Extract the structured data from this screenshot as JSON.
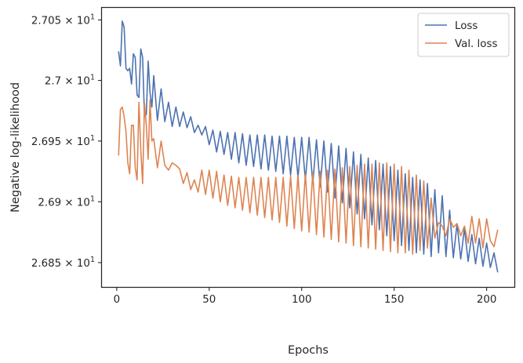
{
  "chart_data": {
    "type": "line",
    "xlabel": "Epochs",
    "ylabel": "Negative log-likelihood",
    "xlim": [
      -8,
      215
    ],
    "ylim": [
      26.83,
      27.06
    ],
    "y_scale": "log",
    "x_ticks": [
      0,
      50,
      100,
      150,
      200
    ],
    "x_tick_labels": [
      "0",
      "50",
      "100",
      "150",
      "200"
    ],
    "y_ticks": [
      26.85,
      26.9,
      26.95,
      27.0,
      27.05
    ],
    "y_tick_mantissa": [
      "2.685",
      "2.69",
      "2.695",
      "2.7",
      "2.705"
    ],
    "y_tick_base": "10",
    "y_tick_exp": "1",
    "grid": false,
    "legend_position": "top-right",
    "series": [
      {
        "name": "Loss",
        "color": "#4c72b0",
        "x": [
          1,
          2,
          3,
          4,
          5,
          6,
          7,
          8,
          9,
          10,
          11,
          12,
          13,
          14,
          15,
          16,
          17,
          18,
          19,
          20,
          22,
          24,
          26,
          28,
          30,
          32,
          34,
          36,
          38,
          40,
          42,
          44,
          46,
          48,
          50,
          52,
          54,
          56,
          58,
          60,
          62,
          64,
          66,
          68,
          70,
          72,
          74,
          76,
          78,
          80,
          82,
          84,
          86,
          88,
          90,
          92,
          94,
          96,
          98,
          100,
          102,
          104,
          106,
          108,
          110,
          112,
          114,
          116,
          118,
          120,
          122,
          124,
          126,
          128,
          130,
          132,
          134,
          136,
          138,
          140,
          142,
          144,
          146,
          148,
          150,
          152,
          154,
          156,
          158,
          160,
          162,
          164,
          166,
          168,
          170,
          172,
          174,
          176,
          178,
          180,
          182,
          184,
          186,
          188,
          190,
          192,
          194,
          196,
          198,
          200,
          202,
          204,
          206
        ],
        "values": [
          27.024,
          27.012,
          27.049,
          27.044,
          27.01,
          27.008,
          27.01,
          26.997,
          27.022,
          27.019,
          26.988,
          26.986,
          27.026,
          27.019,
          26.97,
          26.972,
          27.016,
          26.99,
          26.978,
          27.004,
          26.967,
          26.993,
          26.966,
          26.982,
          26.962,
          26.978,
          26.962,
          26.974,
          26.961,
          26.97,
          26.957,
          26.963,
          26.955,
          26.962,
          26.947,
          26.959,
          26.941,
          26.958,
          26.939,
          26.957,
          26.935,
          26.957,
          26.932,
          26.956,
          26.93,
          26.955,
          26.929,
          26.955,
          26.927,
          26.955,
          26.926,
          26.954,
          26.925,
          26.954,
          26.923,
          26.954,
          26.922,
          26.953,
          26.92,
          26.953,
          26.918,
          26.953,
          26.915,
          26.951,
          26.912,
          26.95,
          26.908,
          26.948,
          26.903,
          26.946,
          26.899,
          26.944,
          26.895,
          26.941,
          26.89,
          26.939,
          26.886,
          26.936,
          26.881,
          26.934,
          26.877,
          26.931,
          26.872,
          26.929,
          26.868,
          26.926,
          26.864,
          26.923,
          26.86,
          26.92,
          26.858,
          26.918,
          26.857,
          26.915,
          26.855,
          26.91,
          26.858,
          26.905,
          26.855,
          26.893,
          26.854,
          26.882,
          26.853,
          26.878,
          26.851,
          26.873,
          26.849,
          26.87,
          26.847,
          26.866,
          26.846,
          26.858,
          26.842
        ]
      },
      {
        "name": "Val. loss",
        "color": "#dd8452",
        "x": [
          1,
          2,
          3,
          4,
          5,
          6,
          7,
          8,
          9,
          10,
          11,
          12,
          13,
          14,
          15,
          16,
          17,
          18,
          19,
          20,
          22,
          24,
          26,
          28,
          30,
          32,
          34,
          36,
          38,
          40,
          42,
          44,
          46,
          48,
          50,
          52,
          54,
          56,
          58,
          60,
          62,
          64,
          66,
          68,
          70,
          72,
          74,
          76,
          78,
          80,
          82,
          84,
          86,
          88,
          90,
          92,
          94,
          96,
          98,
          100,
          102,
          104,
          106,
          108,
          110,
          112,
          114,
          116,
          118,
          120,
          122,
          124,
          126,
          128,
          130,
          132,
          134,
          136,
          138,
          140,
          142,
          144,
          146,
          148,
          150,
          152,
          154,
          156,
          158,
          160,
          162,
          164,
          166,
          168,
          170,
          172,
          174,
          176,
          178,
          180,
          182,
          184,
          186,
          188,
          190,
          192,
          194,
          196,
          198,
          200,
          202,
          204,
          206
        ],
        "values": [
          26.938,
          26.976,
          26.978,
          26.97,
          26.958,
          26.932,
          26.923,
          26.963,
          26.963,
          26.928,
          26.918,
          26.982,
          26.943,
          26.915,
          26.981,
          26.963,
          26.935,
          26.984,
          26.95,
          26.952,
          26.928,
          26.95,
          26.93,
          26.926,
          26.932,
          26.93,
          26.927,
          26.915,
          26.924,
          26.91,
          26.918,
          26.908,
          26.926,
          26.906,
          26.926,
          26.903,
          26.925,
          26.9,
          26.922,
          26.897,
          26.921,
          26.895,
          26.92,
          26.893,
          26.92,
          26.891,
          26.92,
          26.889,
          26.92,
          26.887,
          26.92,
          26.885,
          26.92,
          26.883,
          26.92,
          26.88,
          26.921,
          26.878,
          26.922,
          26.876,
          26.923,
          26.875,
          26.924,
          26.873,
          26.925,
          26.871,
          26.926,
          26.869,
          26.927,
          26.867,
          26.928,
          26.866,
          26.929,
          26.864,
          26.93,
          26.863,
          26.931,
          26.862,
          26.931,
          26.861,
          26.932,
          26.86,
          26.932,
          26.859,
          26.931,
          26.858,
          26.929,
          26.858,
          26.926,
          26.857,
          26.922,
          26.86,
          26.917,
          26.862,
          26.903,
          26.87,
          26.883,
          26.88,
          26.872,
          26.886,
          26.879,
          26.882,
          26.872,
          26.88,
          26.866,
          26.888,
          26.866,
          26.886,
          26.862,
          26.886,
          26.868,
          26.863,
          26.877
        ]
      }
    ]
  }
}
